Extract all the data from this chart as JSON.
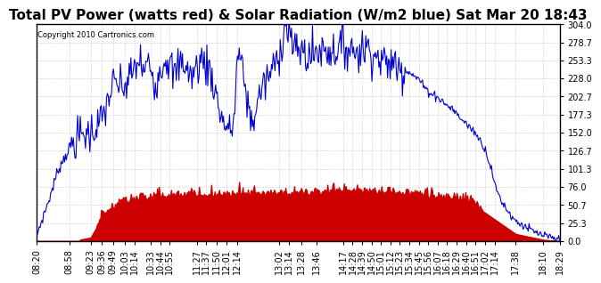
{
  "title": "Total PV Power (watts red) & Solar Radiation (W/m2 blue) Sat Mar 20 18:43",
  "copyright": "Copyright 2010 Cartronics.com",
  "ylabel_right_ticks": [
    0.0,
    25.3,
    50.7,
    76.0,
    101.3,
    126.7,
    152.0,
    177.3,
    202.7,
    228.0,
    253.3,
    278.7,
    304.0
  ],
  "ylim": [
    0.0,
    304.0
  ],
  "x_labels": [
    "08:20",
    "08:58",
    "09:23",
    "09:36",
    "09:49",
    "10:03",
    "10:14",
    "10:33",
    "10:44",
    "10:55",
    "11:27",
    "11:37",
    "11:50",
    "12:01",
    "12:14",
    "13:02",
    "13:14",
    "13:28",
    "13:46",
    "14:17",
    "14:28",
    "14:39",
    "14:50",
    "15:01",
    "15:12",
    "15:23",
    "15:34",
    "15:45",
    "15:56",
    "16:07",
    "16:18",
    "16:29",
    "16:40",
    "16:51",
    "17:02",
    "17:14",
    "17:38",
    "18:10",
    "18:29"
  ],
  "background_color": "#ffffff",
  "plot_bg_color": "#ffffff",
  "blue_line_color": "#0000cc",
  "red_fill_color": "#cc0000",
  "grid_color": "#aaaaaa",
  "title_fontsize": 11,
  "tick_fontsize": 7
}
